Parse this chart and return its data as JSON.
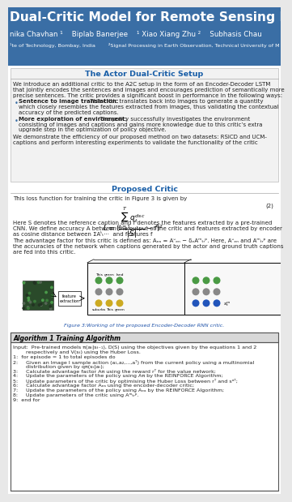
{
  "header_bg": "#3a6ea5",
  "header_title": "Dual-Critic Model for Remote Sensing Im",
  "header_authors": "nika Chavhan ¹    Biplab Banerjee    ¹ Xiao Xiang Zhu ²    Subhasis Chau",
  "header_affil": "¹te of Technology, Bombay, India        ²Signal Processing in Earth Observation, Technical University of M",
  "section1_title": "The Actor Dual-Critic Setup",
  "section1_body1": "We introduce an additional critic to the A2C setup in the form of an Encoder-Decoder LSTM",
  "section1_body2": "that jointly encodes the sentences and images and encourages prediction of semantically more",
  "section1_body3": "precise sentences. The critic provides a significant boost in performance in the following ways:",
  "bullet1_bold": "Sentence to image translation:",
  "bullet1_rest": " This critic translates back into images to generate a quantity",
  "bullet1_l2": "which closely resembles the features extracted from images, thus validating the contextual",
  "bullet1_l3": "accuracy of the predicted captions.",
  "bullet2_bold": "More exploration of environment:",
  "bullet2_rest": " The policy successfully investigates the environment",
  "bullet2_l2": "consisting of images and captions and gains more knowledge due to this critic’s extra",
  "bullet2_l3": "upgrade step in the optimization of policy objective.",
  "section1_foot1": "We demonstrate the efficiency of our proposed method on two datasets: RSICD and UCM-",
  "section1_foot2": "captions and perform interesting experiments to validate the functionality of the critic",
  "section2_title": "Proposed Critic",
  "section2_eq_pre": "This loss function for training the critic in Figure 3 is given by",
  "section2_eq_num": "(2)",
  "section2_t1l1": "Here S denotes the reference caption and f denotes the features extracted by a pre-trained",
  "section2_t1l2": "CNN. We define accuracy A between the output of the critic and features extracted by encoder",
  "section2_t1l3": "as cosine distance between ΣAᵗₜ···  and features f",
  "section2_t2l1": "The advantage factor for this critic is defined as: Aₑₐ = Aᵕₑₙ − δₑAᵐₜᵣᵖ. Here, Aᵕₑₙ and Aᵐₜᵣᵖ are",
  "section2_t2l2": "the accuracies of the network when captions generated by the actor and ground truth captions",
  "section2_t2l3": "are fed into this critic.",
  "fig_caption": "Figure 3:Working of the proposed Encoder-Decoder RNN critic.",
  "section3_title": "Algorithm 1 Training Algorithm",
  "algo_in1": "Input:  Pre-trained models π(aₜ|sₜ₋₁), D(S) using the objectives given by the equations 1 and 2",
  "algo_in2": "        respectively and V(sₜ) using the Huber Loss.",
  "algo_steps": [
    "1:  for episode = 1 to total episodes do",
    "2:     Given an Image I sample action (a₁,a₂,...,aᵀ) from the current policy using a multinomial",
    "        distribution given by qπ(sₜ|aₜ);",
    "3:     Calculate advantage factor Aπ using the reward rᵀ for the value network;",
    "4:     Update the parameters of the policy using Aπ by the REINFORCE Algorithm;",
    "5:     Update parameters of the critic by optimising the Huber Loss between rᵀ and sᵅᵀ;",
    "6:     Calculate advantage factor Aₑₐ using the encoder-decoder critic;",
    "7:     Update the parameters of the policy using Aₑₐ by the REINFORCE Algorithm;",
    "8:     Update parameters of the critic using Aᵐₜᵣᵖ.",
    "9:  end for"
  ],
  "text_color": "#222222",
  "section_title_color": "#1a5fa8",
  "bg_color": "#e8e8e8",
  "white": "#ffffff",
  "bullet_color": "#3a6ea5",
  "fig_cap_color": "#2255aa"
}
